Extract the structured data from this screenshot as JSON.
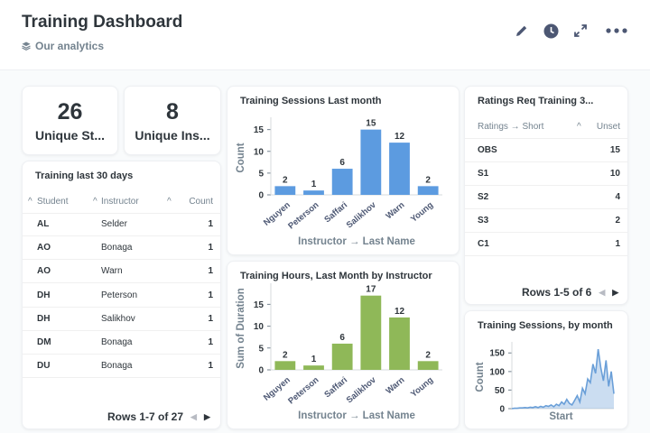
{
  "header": {
    "title": "Training Dashboard",
    "collection": "Our analytics",
    "icons": [
      "pencil-icon",
      "clock-icon",
      "expand-icon",
      "more-icon"
    ]
  },
  "scalars": [
    {
      "value": "26",
      "label": "Unique St..."
    },
    {
      "value": "8",
      "label": "Unique Ins..."
    }
  ],
  "training30": {
    "title": "Training last 30 days",
    "columns": [
      "Student",
      "Instructor",
      "Count"
    ],
    "rows": [
      [
        "AL",
        "Selder",
        "1"
      ],
      [
        "AO",
        "Bonaga",
        "1"
      ],
      [
        "AO",
        "Warn",
        "1"
      ],
      [
        "DH",
        "Peterson",
        "1"
      ],
      [
        "DH",
        "Salikhov",
        "1"
      ],
      [
        "DM",
        "Bonaga",
        "1"
      ],
      [
        "DU",
        "Bonaga",
        "1"
      ]
    ],
    "pager": "Rows 1-7 of 27"
  },
  "ratings": {
    "title": "Ratings Req Training 3...",
    "columns": [
      "Ratings → Short",
      "Unset"
    ],
    "rows": [
      [
        "OBS",
        "15"
      ],
      [
        "S1",
        "10"
      ],
      [
        "S2",
        "4"
      ],
      [
        "S3",
        "2"
      ],
      [
        "C1",
        "1"
      ]
    ],
    "pager": "Rows 1-5 of 6"
  },
  "colors": {
    "blue": "#5c9be0",
    "green": "#8fb858",
    "area": "#6a9fd8"
  },
  "chart_data": [
    {
      "type": "bar",
      "title": "Training Sessions Last month",
      "categories": [
        "Nguyen",
        "Peterson",
        "Saffari",
        "Salikhov",
        "Warn",
        "Young"
      ],
      "values": [
        2,
        1,
        6,
        15,
        12,
        2
      ],
      "xlabel": "Instructor → Last Name",
      "ylabel": "Count",
      "yticks": [
        0,
        5,
        10,
        15
      ],
      "ylim": [
        0,
        17
      ],
      "color": "#5c9be0"
    },
    {
      "type": "bar",
      "title": "Training Hours, Last Month by Instructor",
      "categories": [
        "Nguyen",
        "Peterson",
        "Saffari",
        "Salikhov",
        "Warn",
        "Young"
      ],
      "values": [
        2,
        1,
        6,
        17,
        12,
        2
      ],
      "xlabel": "Instructor → Last Name",
      "ylabel": "Sum of Duration",
      "yticks": [
        0,
        5,
        10,
        15
      ],
      "ylim": [
        0,
        19
      ],
      "color": "#8fb858"
    },
    {
      "type": "area",
      "title": "Training Sessions, by month",
      "xlabel": "Start",
      "ylabel": "Count",
      "yticks": [
        0,
        50,
        100,
        150
      ],
      "ylim": [
        0,
        170
      ],
      "values": [
        0,
        1,
        1,
        2,
        2,
        3,
        2,
        4,
        3,
        5,
        3,
        6,
        4,
        8,
        6,
        10,
        5,
        12,
        8,
        18,
        12,
        25,
        14,
        10,
        22,
        35,
        18,
        55,
        40,
        80,
        70,
        120,
        95,
        160,
        110,
        75,
        130,
        60,
        100,
        40
      ],
      "color": "#6a9fd8"
    }
  ]
}
